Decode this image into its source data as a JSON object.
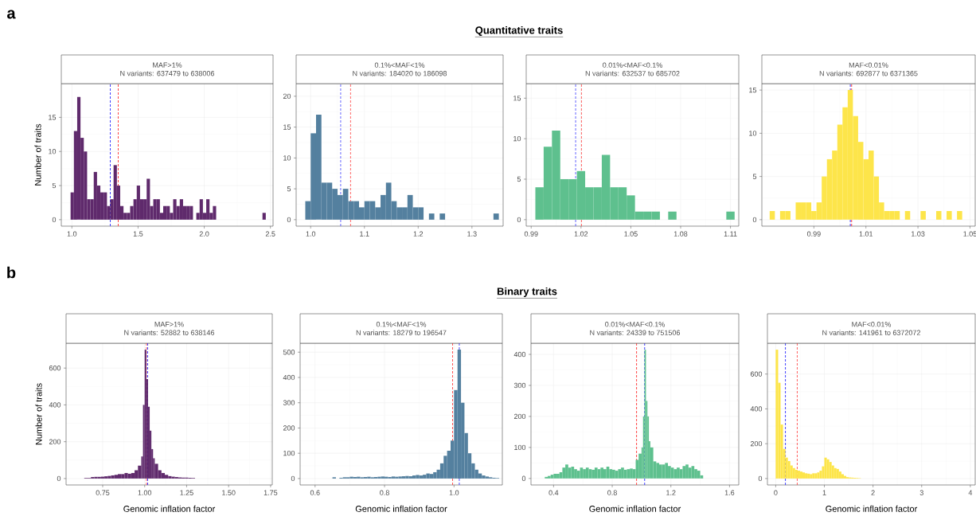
{
  "chart_data": [
    {
      "type": "histogram",
      "title": "MAF>1%",
      "subtitle": "N variants: 637479 to 638006",
      "ylabel": "Number of traits",
      "annotations": [
        "a",
        "Quantitative traits"
      ],
      "color": "#5f2a6c",
      "grid": true,
      "bins": [
        0.99,
        1.015,
        1.04,
        1.065,
        1.09,
        1.115,
        1.14,
        1.165,
        1.19,
        1.215,
        1.24,
        1.265,
        1.29,
        1.315,
        1.34,
        1.365,
        1.39,
        1.415,
        1.44,
        1.465,
        1.49,
        1.515,
        1.54,
        1.565,
        1.59,
        1.615,
        1.64,
        1.665,
        1.69,
        1.715,
        1.74,
        1.765,
        1.79,
        1.815,
        1.84,
        1.865,
        1.89,
        1.915,
        1.94,
        1.965,
        1.99,
        2.015,
        2.04,
        2.065,
        2.09,
        2.115,
        2.14,
        2.165,
        2.19,
        2.215,
        2.24,
        2.265,
        2.29,
        2.315,
        2.34,
        2.365,
        2.39,
        2.415,
        2.44,
        2.465,
        2.49
      ],
      "values": [
        4,
        13,
        18,
        12,
        10,
        3,
        3,
        7,
        5,
        4,
        4,
        2,
        3,
        8,
        5,
        2,
        1,
        1,
        2,
        3,
        5,
        3,
        3,
        6,
        2,
        3,
        3,
        1,
        2,
        2,
        1,
        3,
        2,
        3,
        2,
        2,
        2,
        0,
        1,
        3,
        1,
        3,
        1,
        2,
        0,
        0,
        0,
        0,
        0,
        0,
        0,
        0,
        0,
        0,
        0,
        0,
        0,
        0,
        1,
        0
      ],
      "xlim": [
        0.92,
        2.52
      ],
      "ylim": [
        -0.95,
        19.95
      ],
      "xticks": [
        {
          "value": 1,
          "label": "1.0"
        },
        1.5,
        {
          "value": 2,
          "label": "2.0"
        },
        2.5
      ],
      "yticks": [
        0,
        5,
        10,
        15
      ],
      "ref_lines": [
        {
          "axis": "x",
          "value": 1.29,
          "color": "#3a3aff",
          "line_style": "dashed"
        },
        {
          "axis": "x",
          "value": 1.35,
          "color": "#ff4040",
          "line_style": "dashed"
        }
      ]
    },
    {
      "type": "histogram",
      "title": "0.1%<MAF<1%",
      "subtitle": "N variants: 184020 to 186098",
      "color": "#54809f",
      "grid": true,
      "bins": [
        0.99,
        1.0,
        1.01,
        1.02,
        1.03,
        1.04,
        1.05,
        1.06,
        1.07,
        1.08,
        1.09,
        1.1,
        1.11,
        1.12,
        1.13,
        1.14,
        1.15,
        1.16,
        1.17,
        1.18,
        1.19,
        1.2,
        1.21,
        1.22,
        1.23,
        1.24,
        1.25,
        1.26,
        1.27,
        1.28,
        1.29,
        1.3,
        1.31,
        1.32,
        1.33,
        1.34,
        1.35
      ],
      "values": [
        3,
        14,
        17,
        6,
        6,
        5,
        4,
        5,
        3,
        3,
        2,
        3,
        3,
        2,
        4,
        6,
        3,
        2,
        2,
        4,
        2,
        2,
        0,
        1,
        0,
        1,
        0,
        0,
        0,
        0,
        0,
        0,
        0,
        0,
        0,
        1
      ],
      "xlim": [
        0.973,
        1.358
      ],
      "ylim": [
        -1.05,
        22.05
      ],
      "xticks": [
        {
          "value": 1,
          "label": "1.0"
        },
        1.1,
        1.2,
        1.3
      ],
      "yticks": [
        0,
        5,
        10,
        15,
        20
      ],
      "ref_lines": [
        {
          "axis": "x",
          "value": 1.056,
          "color": "#3a3aff",
          "line_style": "dashed"
        },
        {
          "axis": "x",
          "value": 1.074,
          "color": "#ff4040",
          "line_style": "dashed"
        }
      ]
    },
    {
      "type": "histogram",
      "title": "0.01%<MAF<0.1%",
      "subtitle": "N variants: 632537 to 685702",
      "color": "#5ec08e",
      "grid": true,
      "bins": [
        0.9925,
        0.9975,
        1.0025,
        1.0075,
        1.0125,
        1.0175,
        1.0225,
        1.0275,
        1.0325,
        1.0375,
        1.0425,
        1.0475,
        1.0525,
        1.0575,
        1.0625,
        1.0675,
        1.0725,
        1.0775,
        1.0825,
        1.0875,
        1.0925,
        1.0975,
        1.1025,
        1.1075,
        1.1125
      ],
      "values": [
        4,
        9,
        11,
        5,
        5,
        6,
        4,
        4,
        8,
        4,
        4,
        3,
        1,
        1,
        1,
        0,
        1,
        0,
        0,
        0,
        0,
        0,
        0,
        1
      ],
      "xlim": [
        0.987,
        1.115
      ],
      "ylim": [
        -0.8,
        16.8
      ],
      "xticks": [
        0.99,
        1.02,
        1.05,
        1.08,
        1.11
      ],
      "yticks": [
        0,
        5,
        10,
        15
      ],
      "ref_lines": [
        {
          "axis": "x",
          "value": 1.0168,
          "color": "#3a3aff",
          "line_style": "dashed"
        },
        {
          "axis": "x",
          "value": 1.0202,
          "color": "#ff4040",
          "line_style": "dashed"
        }
      ]
    },
    {
      "type": "histogram",
      "title": "MAF<0.01%",
      "subtitle": "N variants: 692877 to 6371365",
      "color": "#fde54a",
      "grid": true,
      "bins": [
        0.973,
        0.975,
        0.977,
        0.979,
        0.981,
        0.983,
        0.985,
        0.987,
        0.989,
        0.991,
        0.993,
        0.995,
        0.997,
        0.999,
        1.001,
        1.003,
        1.005,
        1.007,
        1.009,
        1.011,
        1.013,
        1.015,
        1.017,
        1.019,
        1.021,
        1.023,
        1.025,
        1.027,
        1.029,
        1.031,
        1.033,
        1.035,
        1.037,
        1.039,
        1.041,
        1.043,
        1.045,
        1.047
      ],
      "values": [
        1,
        0,
        1,
        1,
        0,
        2,
        2,
        2,
        1,
        2,
        5,
        7,
        8,
        11,
        13,
        15,
        12,
        9,
        7,
        8,
        5,
        2,
        1,
        1,
        1,
        0,
        1,
        0,
        0,
        1,
        0,
        0,
        1,
        0,
        1,
        0,
        1
      ],
      "xlim": [
        0.97,
        1.052
      ],
      "ylim": [
        -0.75,
        15.75
      ],
      "xticks": [
        0.99,
        1.01,
        1.03,
        1.05
      ],
      "yticks": [
        0,
        5,
        10,
        15
      ],
      "ref_lines": [
        {
          "axis": "x",
          "value": 1.004,
          "color": "#3a3aff",
          "line_style": "dashed"
        },
        {
          "axis": "x",
          "value": 1.0045,
          "color": "#ff4040",
          "line_style": "dashed"
        }
      ]
    },
    {
      "type": "histogram",
      "title": "MAF>1%",
      "subtitle": "N variants: 52882 to 638146",
      "ylabel": "Number of traits",
      "xlabel": "Genomic inflation factor",
      "annotations": [
        "b",
        "Binary traits"
      ],
      "color": "#5f2a6c",
      "grid": true,
      "bins": [
        0.64,
        0.66,
        0.68,
        0.7,
        0.72,
        0.74,
        0.76,
        0.78,
        0.8,
        0.82,
        0.84,
        0.86,
        0.88,
        0.9,
        0.92,
        0.94,
        0.96,
        0.98,
        0.99,
        1.0,
        1.01,
        1.02,
        1.03,
        1.04,
        1.05,
        1.06,
        1.08,
        1.1,
        1.12,
        1.14,
        1.16,
        1.18,
        1.2,
        1.22,
        1.24,
        1.26,
        1.28,
        1.3
      ],
      "values": [
        3,
        3,
        8,
        9,
        9,
        10,
        12,
        14,
        17,
        20,
        24,
        24,
        30,
        26,
        30,
        45,
        70,
        120,
        400,
        700,
        540,
        390,
        260,
        160,
        110,
        80,
        45,
        30,
        20,
        13,
        10,
        8,
        6,
        5,
        5,
        4,
        3
      ],
      "xlim": [
        0.532,
        1.76
      ],
      "ylim": [
        -35,
        735
      ],
      "xticks": [
        0.75,
        {
          "value": 1,
          "label": "1.00"
        },
        1.25,
        {
          "value": 1.5,
          "label": "1.50"
        },
        1.75
      ],
      "yticks": [
        0,
        200,
        400,
        600
      ],
      "ref_lines": [
        {
          "axis": "x",
          "value": 1.011,
          "color": "#ff4040",
          "line_style": "dashed"
        },
        {
          "axis": "x",
          "value": 1.018,
          "color": "#3a3aff",
          "line_style": "dashed"
        }
      ]
    },
    {
      "type": "histogram",
      "title": "0.1%<MAF<1%",
      "subtitle": "N variants: 18279 to 196547",
      "xlabel": "Genomic inflation factor",
      "color": "#54809f",
      "grid": true,
      "bins": [
        0.65,
        0.66,
        0.67,
        0.68,
        0.69,
        0.7,
        0.71,
        0.72,
        0.73,
        0.74,
        0.75,
        0.76,
        0.77,
        0.78,
        0.79,
        0.8,
        0.81,
        0.82,
        0.83,
        0.84,
        0.85,
        0.86,
        0.87,
        0.88,
        0.89,
        0.9,
        0.91,
        0.92,
        0.93,
        0.94,
        0.95,
        0.96,
        0.97,
        0.98,
        0.99,
        1.0,
        1.01,
        1.02,
        1.03,
        1.04,
        1.05,
        1.06,
        1.07,
        1.08,
        1.09,
        1.1,
        1.11,
        1.12,
        1.13
      ],
      "values": [
        5,
        0,
        3,
        5,
        5,
        7,
        6,
        7,
        5,
        6,
        7,
        5,
        6,
        7,
        8,
        7,
        6,
        8,
        7,
        8,
        9,
        10,
        9,
        12,
        14,
        12,
        15,
        20,
        18,
        25,
        35,
        60,
        90,
        110,
        150,
        350,
        510,
        300,
        180,
        100,
        60,
        35,
        20,
        12,
        8,
        5,
        3,
        2
      ],
      "xlim": [
        0.557,
        1.139
      ],
      "ylim": [
        -25.5,
        535.5
      ],
      "xticks": [
        0.6,
        0.8,
        {
          "value": 1,
          "label": "1.0"
        }
      ],
      "yticks": [
        0,
        100,
        200,
        300,
        400,
        500
      ],
      "ref_lines": [
        {
          "axis": "x",
          "value": 0.996,
          "color": "#ff4040",
          "line_style": "dashed"
        },
        {
          "axis": "x",
          "value": 1.015,
          "color": "#3a3aff",
          "line_style": "dashed"
        }
      ]
    },
    {
      "type": "histogram",
      "title": "0.01%<MAF<0.1%",
      "subtitle": "N variants: 24339 to 751506",
      "xlabel": "Genomic inflation factor",
      "color": "#5ec08e",
      "grid": true,
      "bins": [
        0.34,
        0.36,
        0.38,
        0.4,
        0.42,
        0.44,
        0.46,
        0.48,
        0.5,
        0.52,
        0.54,
        0.56,
        0.58,
        0.6,
        0.62,
        0.64,
        0.66,
        0.68,
        0.7,
        0.72,
        0.74,
        0.76,
        0.78,
        0.8,
        0.82,
        0.84,
        0.86,
        0.88,
        0.9,
        0.92,
        0.94,
        0.96,
        0.98,
        1.0,
        1.01,
        1.02,
        1.03,
        1.04,
        1.05,
        1.06,
        1.08,
        1.1,
        1.12,
        1.14,
        1.16,
        1.18,
        1.2,
        1.22,
        1.24,
        1.26,
        1.28,
        1.3,
        1.32,
        1.34,
        1.36,
        1.38,
        1.4,
        1.42
      ],
      "values": [
        5,
        8,
        12,
        15,
        15,
        20,
        35,
        45,
        35,
        38,
        30,
        25,
        35,
        30,
        35,
        30,
        28,
        35,
        30,
        35,
        30,
        38,
        30,
        28,
        25,
        30,
        35,
        28,
        30,
        32,
        30,
        60,
        80,
        100,
        200,
        415,
        250,
        200,
        120,
        100,
        55,
        50,
        45,
        45,
        50,
        40,
        35,
        30,
        35,
        30,
        40,
        45,
        35,
        40,
        30,
        25,
        10
      ],
      "xlim": [
        0.246,
        1.663
      ],
      "ylim": [
        -21,
        436
      ],
      "xticks": [
        0.4,
        0.8,
        1.2,
        1.6
      ],
      "yticks": [
        0,
        100,
        200,
        300,
        400
      ],
      "ref_lines": [
        {
          "axis": "x",
          "value": 0.966,
          "color": "#ff4040",
          "line_style": "dashed"
        },
        {
          "axis": "x",
          "value": 1.021,
          "color": "#3a3aff",
          "line_style": "dashed"
        }
      ]
    },
    {
      "type": "histogram",
      "title": "MAF<0.01%",
      "subtitle": "N variants: 141961 to 6372072",
      "xlabel": "Genomic inflation factor",
      "color": "#fde54a",
      "grid": true,
      "bins": [
        0,
        0.05,
        0.1,
        0.15,
        0.2,
        0.25,
        0.3,
        0.35,
        0.4,
        0.45,
        0.5,
        0.55,
        0.6,
        0.65,
        0.7,
        0.75,
        0.8,
        0.85,
        0.9,
        0.95,
        1.0,
        1.05,
        1.1,
        1.15,
        1.2,
        1.25,
        1.3,
        1.35,
        1.4,
        1.45,
        1.5,
        1.55,
        1.6,
        1.65,
        1.7,
        1.75
      ],
      "values": [
        740,
        550,
        310,
        170,
        120,
        100,
        75,
        60,
        50,
        45,
        40,
        35,
        30,
        28,
        25,
        30,
        30,
        35,
        45,
        70,
        120,
        110,
        95,
        75,
        60,
        55,
        40,
        25,
        15,
        8,
        6,
        5,
        4,
        3,
        2
      ],
      "xlim": [
        -0.17,
        4.1
      ],
      "ylim": [
        -37,
        777
      ],
      "xticks": [
        0,
        1,
        2,
        3,
        4
      ],
      "yticks": [
        0,
        200,
        400,
        600
      ],
      "ref_lines": [
        {
          "axis": "x",
          "value": 0.2,
          "color": "#3a3aff",
          "line_style": "dashed"
        },
        {
          "axis": "x",
          "value": 0.44,
          "color": "#ff4040",
          "line_style": "dashed"
        }
      ]
    }
  ]
}
